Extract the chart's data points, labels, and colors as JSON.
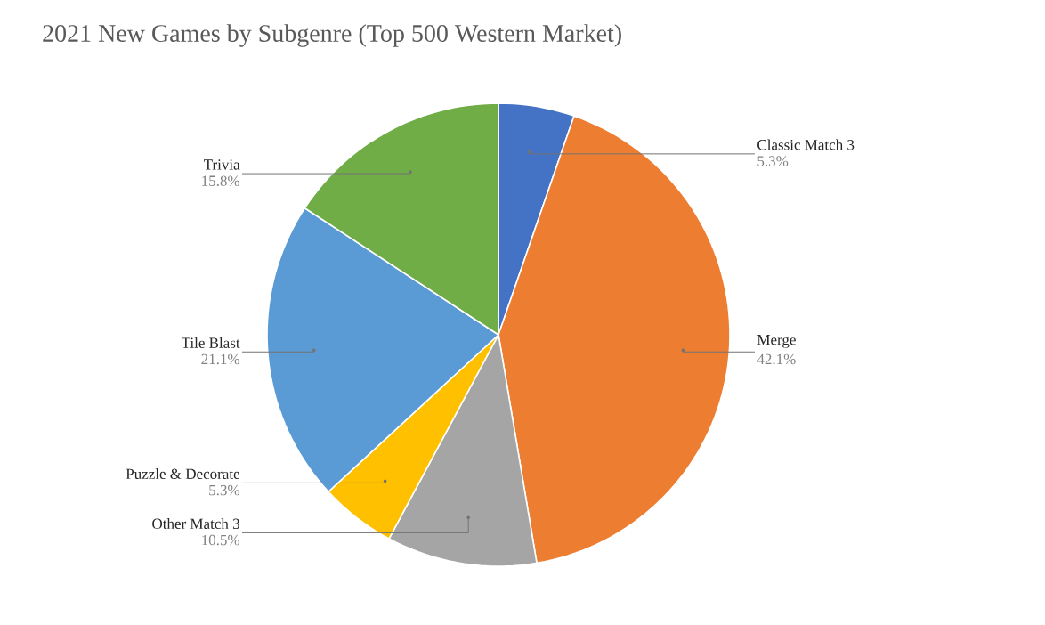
{
  "chart_data": {
    "type": "pie",
    "title": "2021 New Games by Subgenre (Top 500 Western Market)",
    "categories": [
      "Classic Match 3",
      "Merge",
      "Other Match 3",
      "Puzzle & Decorate",
      "Tile Blast",
      "Trivia"
    ],
    "values": [
      5.3,
      42.1,
      10.5,
      5.3,
      21.1,
      15.8
    ],
    "value_labels": [
      "5.3%",
      "42.1%",
      "10.5%",
      "5.3%",
      "21.1%",
      "15.8%"
    ],
    "colors": [
      "#4472c4",
      "#ed7d31",
      "#a5a5a5",
      "#ffc000",
      "#5b9bd5",
      "#70ad47"
    ]
  }
}
